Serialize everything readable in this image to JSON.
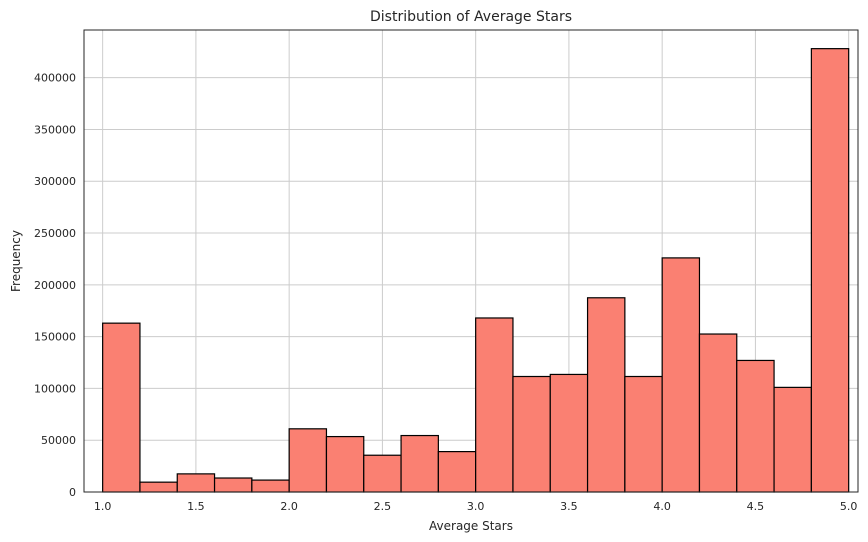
{
  "chart_data": {
    "type": "bar",
    "title": "Distribution of Average Stars",
    "xlabel": "Average Stars",
    "ylabel": "Frequency",
    "bin_edges": [
      1.0,
      1.2,
      1.4,
      1.6,
      1.8,
      2.0,
      2.2,
      2.4,
      2.6,
      2.8,
      3.0,
      3.2,
      3.4,
      3.6,
      3.8,
      4.0,
      4.2,
      4.4,
      4.6,
      4.8,
      5.0
    ],
    "values": [
      163000,
      9500,
      17500,
      13500,
      11500,
      61000,
      53500,
      35500,
      54500,
      39000,
      168000,
      111500,
      113500,
      187500,
      111500,
      226000,
      152500,
      127000,
      101000,
      428000
    ],
    "xlim": [
      0.9,
      5.05
    ],
    "ylim": [
      0,
      446000
    ],
    "xticks": [
      1.0,
      1.5,
      2.0,
      2.5,
      3.0,
      3.5,
      4.0,
      4.5,
      5.0
    ],
    "xtick_labels": [
      "1.0",
      "1.5",
      "2.0",
      "2.5",
      "3.0",
      "3.5",
      "4.0",
      "4.5",
      "5.0"
    ],
    "yticks": [
      0,
      50000,
      100000,
      150000,
      200000,
      250000,
      300000,
      350000,
      400000
    ],
    "ytick_labels": [
      "0",
      "50000",
      "100000",
      "150000",
      "200000",
      "250000",
      "300000",
      "350000",
      "400000"
    ],
    "bar_color": "#fa8072",
    "edge_color": "#000000",
    "grid": true
  }
}
